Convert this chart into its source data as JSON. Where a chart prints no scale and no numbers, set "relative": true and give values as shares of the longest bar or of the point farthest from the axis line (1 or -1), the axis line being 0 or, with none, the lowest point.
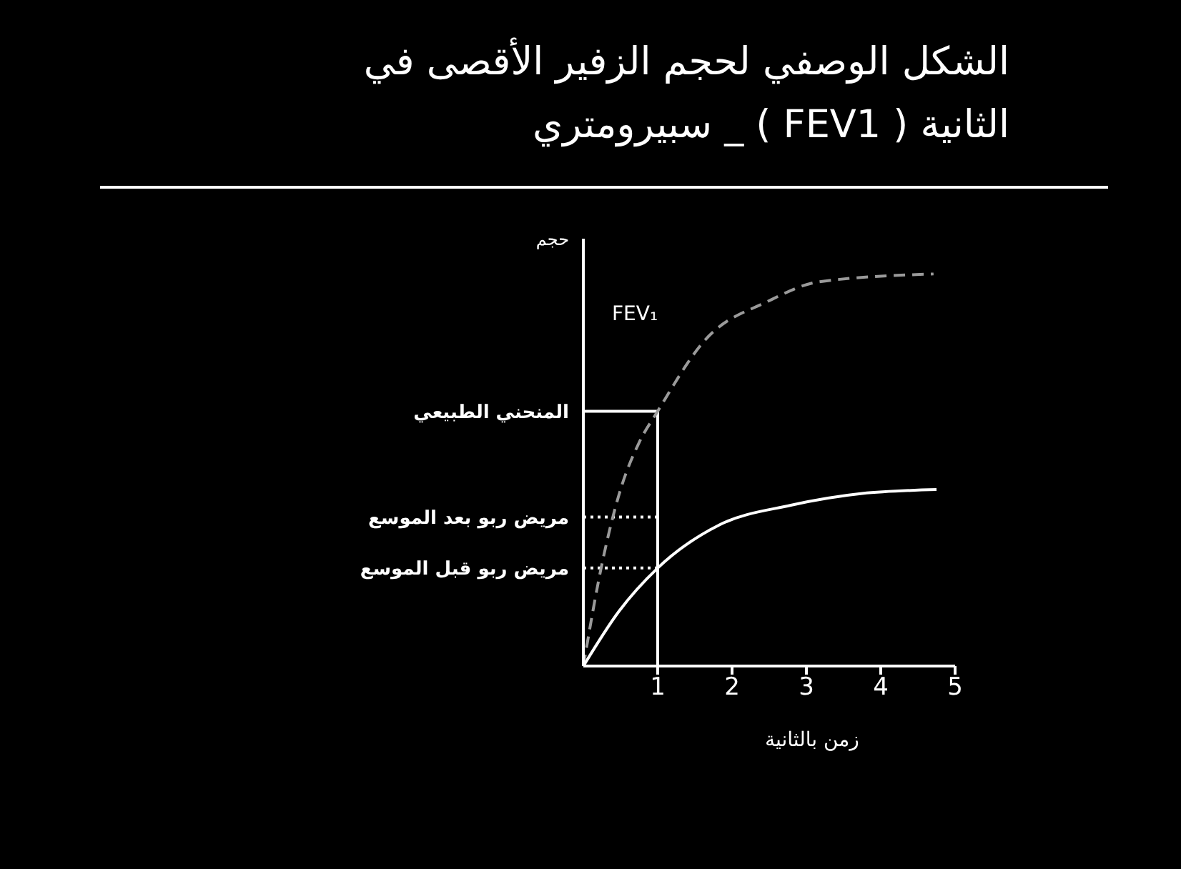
{
  "chart_data": {
    "type": "line",
    "title": "الشكل الوصفي لحجم الزفير الأقصى في\nالثانية ( FEV1 ) _ سبيرومتري",
    "xlabel": "زمن بالثانية",
    "ylabel": "حجم",
    "relative": true,
    "xlim": [
      0,
      5
    ],
    "xticks": [
      1,
      2,
      3,
      4,
      5
    ],
    "grid": false,
    "legend": false,
    "marker": "none",
    "series": [
      {
        "color": "#9a9a9a",
        "line_style": "dashed",
        "x": [
          0,
          0.25,
          0.5,
          0.75,
          1,
          1.63,
          2.48,
          3.17,
          4.71
        ],
        "values": [
          0,
          0.26,
          0.45,
          0.57,
          0.65,
          0.83,
          0.93,
          0.98,
          1.0
        ]
      },
      {
        "color": "#ffffff",
        "line_style": "solid",
        "x": [
          0,
          0.48,
          1,
          1.83,
          2.79,
          3.75,
          4.75
        ],
        "values": [
          0,
          0.14,
          0.25,
          0.36,
          0.41,
          0.44,
          0.45
        ]
      }
    ],
    "ref_lines": [
      {
        "axis": "x",
        "value": 1,
        "color": "#ffffff",
        "line_style": "solid"
      },
      {
        "axis": "y",
        "value": 0.65,
        "label": "المنحني الطبيعي",
        "color": "#ffffff",
        "line_style": "solid"
      },
      {
        "axis": "y",
        "value": 0.38,
        "label": "مريض ربو بعد الموسع",
        "color": "#ffffff",
        "line_style": "dotted"
      },
      {
        "axis": "y",
        "value": 0.25,
        "label": "مريض ربو قبل الموسع",
        "color": "#ffffff",
        "line_style": "dotted"
      }
    ],
    "annotations": [
      "FEV₁"
    ]
  }
}
